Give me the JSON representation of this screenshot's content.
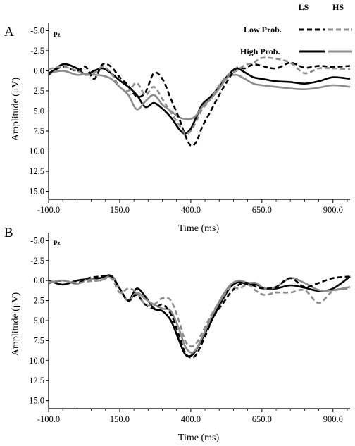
{
  "legend": {
    "col_headers": [
      "LS",
      "HS"
    ],
    "rows": [
      "Low Prob.",
      "High Prob."
    ],
    "colors": {
      "LS": "#000000",
      "HS": "#8c8c8c"
    },
    "styles": {
      "Low Prob.": "dashed",
      "High Prob.": "solid"
    }
  },
  "chart_data": [
    {
      "type": "line",
      "panel": "A",
      "channel": "Pz",
      "xlabel": "Time (ms)",
      "ylabel": "Amplitude (μV)",
      "xlim": [
        -100,
        960
      ],
      "ylim": [
        -6,
        16
      ],
      "y_inverted": true,
      "xticks": [
        -100,
        150,
        400,
        650,
        900
      ],
      "xtick_labels": [
        "-100.0",
        "150.0",
        "400.0",
        "650.0",
        "900.0"
      ],
      "yticks": [
        -5,
        -2.5,
        0,
        2.5,
        5,
        7.5,
        10,
        12.5,
        15
      ],
      "ytick_labels": [
        "-5.0",
        "-2.5",
        "0.0",
        "2.5",
        "5.0",
        "7.5",
        "10.0",
        "12.5",
        "15.0"
      ],
      "grid": false,
      "legend_position": "top-right",
      "series": [
        {
          "name": "Low Prob.",
          "group": "LS",
          "color": "#000000",
          "dash": "dashed",
          "x": [
            -100,
            -50,
            0,
            30,
            60,
            90,
            120,
            150,
            180,
            210,
            240,
            270,
            300,
            330,
            360,
            380,
            400,
            420,
            440,
            470,
            500,
            530,
            560,
            590,
            620,
            650,
            700,
            750,
            800,
            850,
            900,
            960
          ],
          "y": [
            0.3,
            -0.5,
            0,
            -0.5,
            1,
            -0.8,
            -0.5,
            0.8,
            1.8,
            3.2,
            2.7,
            0.3,
            1.0,
            3.5,
            6.0,
            8.0,
            9.3,
            8.8,
            7.0,
            5.0,
            3.0,
            1.2,
            -0.3,
            -0.3,
            -0.8,
            -0.6,
            -0.3,
            -1.0,
            -0.4,
            -0.6,
            -0.5,
            -0.6
          ]
        },
        {
          "name": "High Prob.",
          "group": "LS",
          "color": "#000000",
          "dash": "solid",
          "x": [
            -100,
            -50,
            0,
            30,
            60,
            90,
            120,
            150,
            180,
            210,
            240,
            270,
            300,
            330,
            360,
            380,
            400,
            420,
            440,
            470,
            500,
            530,
            560,
            590,
            620,
            650,
            700,
            750,
            800,
            850,
            900,
            960
          ],
          "y": [
            0.5,
            -0.8,
            -0.3,
            0.5,
            0,
            -0.3,
            0.3,
            1.2,
            2.0,
            3.0,
            4.5,
            4.0,
            4.7,
            5.8,
            7.3,
            7.8,
            7.2,
            5.7,
            4.2,
            3.2,
            2.0,
            0.6,
            -0.3,
            0.2,
            0.8,
            1.0,
            1.3,
            1.4,
            1.6,
            1.3,
            0.8,
            1.0
          ]
        },
        {
          "name": "Low Prob.",
          "group": "HS",
          "color": "#8c8c8c",
          "dash": "dashed",
          "x": [
            -100,
            -50,
            0,
            30,
            60,
            90,
            120,
            150,
            180,
            210,
            240,
            270,
            300,
            330,
            360,
            380,
            400,
            420,
            440,
            470,
            500,
            530,
            560,
            590,
            620,
            650,
            700,
            750,
            800,
            850,
            900,
            960
          ],
          "y": [
            -0.2,
            -0.5,
            0,
            0.5,
            0.3,
            -0.5,
            0.3,
            2.0,
            2.5,
            1.5,
            3.0,
            2.0,
            3.5,
            5.2,
            6.8,
            7.8,
            7.5,
            6.2,
            4.8,
            3.5,
            1.8,
            0.5,
            0,
            -0.7,
            -1.0,
            -1.6,
            -1.5,
            -1.0,
            0.3,
            -0.3,
            -0.3,
            -0.2
          ]
        },
        {
          "name": "High Prob.",
          "group": "HS",
          "color": "#8c8c8c",
          "dash": "solid",
          "x": [
            -100,
            -50,
            0,
            30,
            60,
            90,
            120,
            150,
            180,
            210,
            240,
            270,
            300,
            330,
            360,
            380,
            400,
            420,
            440,
            470,
            500,
            530,
            560,
            590,
            620,
            650,
            700,
            750,
            800,
            850,
            900,
            960
          ],
          "y": [
            0.3,
            0,
            0.5,
            0.4,
            0.5,
            0.6,
            1.0,
            2.0,
            3.0,
            4.8,
            3.8,
            3.0,
            4.2,
            5.0,
            5.8,
            6.0,
            6.0,
            5.5,
            4.5,
            3.5,
            2.2,
            0.8,
            0.5,
            1.0,
            1.6,
            1.8,
            2.0,
            2.2,
            2.3,
            2.1,
            1.8,
            2.0
          ]
        }
      ]
    },
    {
      "type": "line",
      "panel": "B",
      "channel": "Pz",
      "xlabel": "Time (ms)",
      "ylabel": "Amplitude (μV)",
      "xlim": [
        -100,
        960
      ],
      "ylim": [
        -6,
        16
      ],
      "y_inverted": true,
      "xticks": [
        -100,
        150,
        400,
        650,
        900
      ],
      "xtick_labels": [
        "-100.0",
        "150.0",
        "400.0",
        "650.0",
        "900.0"
      ],
      "yticks": [
        -5,
        -2.5,
        0,
        2.5,
        5,
        7.5,
        10,
        12.5,
        15
      ],
      "ytick_labels": [
        "-5.0",
        "-2.5",
        "0.0",
        "2.5",
        "5.0",
        "7.5",
        "10.0",
        "12.5",
        "15.0"
      ],
      "grid": false,
      "series": [
        {
          "name": "Low Prob.",
          "group": "LS",
          "color": "#000000",
          "dash": "dashed",
          "x": [
            -100,
            -50,
            0,
            40,
            80,
            120,
            150,
            180,
            210,
            240,
            270,
            300,
            330,
            360,
            380,
            400,
            420,
            450,
            480,
            510,
            540,
            570,
            600,
            630,
            660,
            700,
            750,
            800,
            850,
            900,
            960
          ],
          "y": [
            0.3,
            0,
            0.3,
            -0.3,
            -0.5,
            -0.5,
            1.0,
            2.5,
            1.8,
            3.0,
            3.5,
            3.0,
            4.2,
            7.0,
            9.0,
            9.6,
            9.2,
            7.0,
            4.5,
            3.0,
            1.5,
            0.5,
            0.3,
            0.8,
            1.0,
            0.8,
            -0.3,
            0.8,
            0.3,
            -0.3,
            -0.5
          ]
        },
        {
          "name": "High Prob.",
          "group": "LS",
          "color": "#000000",
          "dash": "solid",
          "x": [
            -100,
            -50,
            0,
            40,
            80,
            120,
            150,
            180,
            210,
            240,
            270,
            300,
            330,
            360,
            380,
            400,
            420,
            450,
            480,
            510,
            540,
            570,
            600,
            630,
            660,
            700,
            750,
            800,
            850,
            900,
            960
          ],
          "y": [
            0,
            0.5,
            0,
            -0.2,
            -0.3,
            -0.6,
            1.0,
            2.5,
            1.0,
            2.0,
            3.5,
            3.8,
            5.0,
            7.6,
            9.2,
            9.4,
            8.6,
            6.6,
            4.5,
            2.5,
            0.8,
            0.2,
            0.5,
            0.5,
            1.0,
            1.0,
            0.6,
            0.9,
            1.3,
            1.0,
            -0.5
          ]
        },
        {
          "name": "Low Prob.",
          "group": "HS",
          "color": "#8c8c8c",
          "dash": "dashed",
          "x": [
            -100,
            -50,
            0,
            40,
            80,
            120,
            150,
            180,
            210,
            240,
            270,
            300,
            330,
            360,
            380,
            400,
            420,
            450,
            480,
            510,
            540,
            570,
            600,
            630,
            660,
            700,
            750,
            800,
            850,
            900,
            960
          ],
          "y": [
            0.2,
            0,
            0.3,
            0.1,
            0,
            -0.3,
            1.5,
            1.0,
            1.5,
            3.0,
            3.0,
            2.2,
            2.5,
            5.2,
            7.5,
            8.2,
            7.8,
            5.8,
            3.8,
            2.2,
            0.8,
            1.0,
            0.5,
            1.3,
            1.8,
            1.5,
            1.5,
            1.2,
            2.8,
            1.3,
            1.0
          ]
        },
        {
          "name": "High Prob.",
          "group": "HS",
          "color": "#8c8c8c",
          "dash": "solid",
          "x": [
            -100,
            -50,
            0,
            40,
            80,
            120,
            150,
            180,
            210,
            240,
            270,
            300,
            330,
            360,
            380,
            400,
            420,
            450,
            480,
            510,
            540,
            570,
            600,
            630,
            660,
            700,
            750,
            800,
            850,
            900,
            960
          ],
          "y": [
            0.3,
            0,
            0.4,
            -0.2,
            0,
            -0.5,
            1.0,
            2.5,
            1.5,
            2.3,
            3.0,
            3.5,
            3.8,
            6.2,
            8.2,
            9.0,
            8.5,
            6.3,
            4.0,
            2.0,
            0.5,
            0,
            0.3,
            0.3,
            1.0,
            0.8,
            -0.3,
            0.3,
            1.2,
            1.2,
            0.8
          ]
        }
      ]
    }
  ]
}
